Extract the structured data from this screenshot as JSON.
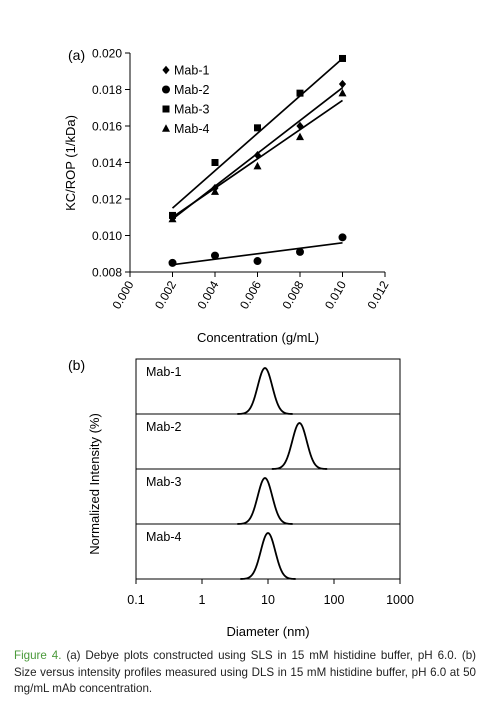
{
  "chart_data": [
    {
      "type": "scatter",
      "panel_label": "(a)",
      "xlabel": "Concentration (g/mL)",
      "ylabel": "KC/ROP (1/kDa)",
      "xlim": [
        0,
        0.012
      ],
      "ylim": [
        0.008,
        0.02
      ],
      "x_ticks": [
        "0.000",
        "0.002",
        "0.004",
        "0.006",
        "0.008",
        "0.010",
        "0.012"
      ],
      "y_ticks": [
        "0.008",
        "0.010",
        "0.012",
        "0.014",
        "0.016",
        "0.018",
        "0.020"
      ],
      "legend_position": "top-left",
      "trendlines": true,
      "x": [
        0.002,
        0.004,
        0.006,
        0.008,
        0.01
      ],
      "series": [
        {
          "name": "Mab-1",
          "marker": "diamond",
          "values": [
            0.011,
            0.0126,
            0.0144,
            0.016,
            0.0183
          ],
          "fit": [
            0.011,
            0.0174
          ]
        },
        {
          "name": "Mab-2",
          "marker": "circle",
          "values": [
            0.0085,
            0.0089,
            0.0086,
            0.0091,
            0.0099
          ],
          "fit": [
            0.0084,
            0.0096
          ]
        },
        {
          "name": "Mab-3",
          "marker": "square",
          "values": [
            0.0111,
            0.014,
            0.0159,
            0.0178,
            0.0197
          ],
          "fit": [
            0.0115,
            0.0197
          ]
        },
        {
          "name": "Mab-4",
          "marker": "triangle",
          "values": [
            0.0109,
            0.0124,
            0.0138,
            0.0154,
            0.0178
          ],
          "fit": [
            0.0109,
            0.0181
          ]
        }
      ]
    },
    {
      "type": "line",
      "panel_label": "(b)",
      "xlabel": "Diameter (nm)",
      "ylabel": "Normalized Intensity (%)",
      "x_scale": "log",
      "xlim": [
        0.1,
        1000
      ],
      "x_ticks": [
        "0.1",
        "1",
        "10",
        "100",
        "1000"
      ],
      "stacked_panels": true,
      "series": [
        {
          "name": "Mab-1",
          "peak_nm": 9
        },
        {
          "name": "Mab-2",
          "peak_nm": 30
        },
        {
          "name": "Mab-3",
          "peak_nm": 9
        },
        {
          "name": "Mab-4",
          "peak_nm": 10
        }
      ]
    }
  ],
  "caption": {
    "label": "Figure 4.",
    "text": " (a) Debye plots constructed using SLS in 15 mM histidine buffer, pH 6.0. (b) Size versus intensity profiles measured using DLS in 15 mM histidine buffer, pH 6.0 at 50 mg/mL mAb concentration."
  },
  "colors": {
    "caption_label": "#4a9a3a",
    "ink": "#000000"
  }
}
